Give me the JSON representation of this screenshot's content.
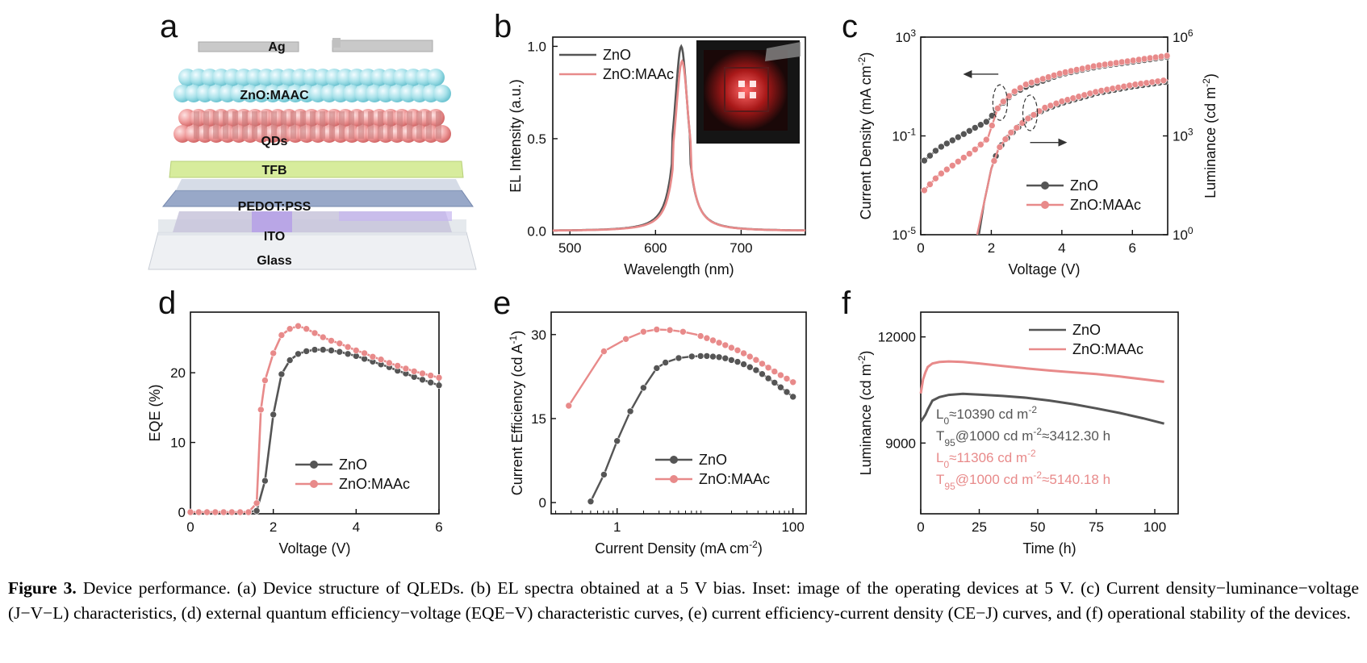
{
  "colors": {
    "zno": "#555555",
    "maac": "#e88a8a",
    "axis": "#111111"
  },
  "panel_a": {
    "label": "a",
    "layers": [
      "Ag",
      "ZnO:MAAC",
      "QDs",
      "TFB",
      "PEDOT:PSS",
      "ITO",
      "Glass"
    ]
  },
  "inset_b": {
    "description_icon": "device-photo-inset"
  },
  "caption": {
    "label": "Figure 3.",
    "text": "Device performance. (a) Device structure of QLEDs. (b) EL spectra obtained at a 5 V bias. Inset: image of the operating devices at 5 V. (c) Current density−luminance−voltage (J−V−L) characteristics, (d) external quantum efficiency−voltage (EQE−V) characteristic curves, (e) current efficiency-current density (CE−J) curves, and (f) operational stability of the devices."
  },
  "chart_data": [
    {
      "id": "b",
      "label": "b",
      "type": "line",
      "xlabel": "Wavelength (nm)",
      "ylabel": "EL Intensity (a.u.)",
      "xlim": [
        480,
        775
      ],
      "ylim": [
        -0.02,
        1.05
      ],
      "xticks": [
        500,
        600,
        700
      ],
      "yticks": [
        0.0,
        0.5,
        1.0
      ],
      "ytick_labels": [
        "0.0",
        "0.5",
        "1.0"
      ],
      "legend_position": "top-left",
      "series": [
        {
          "name": "ZnO",
          "color_key": "zno",
          "peak_x": 630,
          "peak_y": 1.0,
          "fwhm": 21
        },
        {
          "name": "ZnO:MAAc",
          "color_key": "maac",
          "peak_x": 631,
          "peak_y": 0.92,
          "fwhm": 21
        }
      ]
    },
    {
      "id": "c",
      "label": "c",
      "type": "line",
      "xlabel": "Voltage (V)",
      "ylabel": "Current Density (mA cm⁻²)",
      "y2label": "Luminance (cd m⁻²)",
      "xlim": [
        0,
        7
      ],
      "xticks": [
        0,
        2,
        4,
        6
      ],
      "ylim_log": [
        -5,
        3
      ],
      "y_tick_exps": [
        -5,
        -1,
        3
      ],
      "y2lim_log": [
        0,
        6
      ],
      "y2_tick_exps": [
        0,
        3,
        6
      ],
      "legend_position": "center-right",
      "series": [
        {
          "name": "ZnO",
          "color_key": "zno",
          "axis": "left",
          "x": [
            0.1,
            0.5,
            1.0,
            1.5,
            1.9,
            2.2,
            2.6,
            3.0,
            4.0,
            5.0,
            6.0,
            7.0
          ],
          "log_y": [
            -2.0,
            -1.5,
            -1.1,
            -0.7,
            -0.4,
            0.15,
            0.7,
            1.0,
            1.5,
            1.8,
            2.0,
            2.2
          ]
        },
        {
          "name": "ZnO:MAAc",
          "color_key": "maac",
          "axis": "left",
          "x": [
            0.1,
            0.5,
            1.0,
            1.5,
            1.9,
            2.2,
            2.6,
            3.0,
            4.0,
            5.0,
            6.0,
            7.0
          ],
          "log_y": [
            -3.2,
            -2.6,
            -2.1,
            -1.6,
            -1.1,
            0.2,
            0.75,
            1.1,
            1.55,
            1.85,
            2.05,
            2.25
          ]
        },
        {
          "name": "ZnO",
          "color_key": "zno",
          "axis": "right",
          "x": [
            1.65,
            1.8,
            2.0,
            2.2,
            2.5,
            3.0,
            3.5,
            4.0,
            5.0,
            6.0,
            7.0
          ],
          "log_y": [
            0.0,
            1.0,
            2.0,
            2.6,
            3.0,
            3.5,
            3.8,
            4.0,
            4.3,
            4.5,
            4.65
          ]
        },
        {
          "name": "ZnO:MAAc",
          "color_key": "maac",
          "axis": "right",
          "x": [
            1.6,
            1.8,
            2.0,
            2.2,
            2.5,
            3.0,
            3.5,
            4.0,
            5.0,
            6.0,
            7.0
          ],
          "log_y": [
            0.0,
            1.0,
            2.0,
            2.6,
            3.05,
            3.5,
            3.85,
            4.05,
            4.35,
            4.55,
            4.7
          ]
        }
      ]
    },
    {
      "id": "d",
      "label": "d",
      "type": "line",
      "xlabel": "Voltage (V)",
      "ylabel": "EQE (%)",
      "xlim": [
        0,
        6
      ],
      "ylim": [
        0,
        28
      ],
      "xticks": [
        0,
        2,
        4,
        6
      ],
      "yticks": [
        0,
        10,
        20
      ],
      "legend_position": "bottom-center",
      "series": [
        {
          "name": "ZnO",
          "color_key": "zno",
          "x": [
            0,
            0.2,
            0.4,
            0.6,
            0.8,
            1.0,
            1.2,
            1.4,
            1.6,
            1.8,
            2.0,
            2.2,
            2.4,
            2.6,
            2.8,
            3.0,
            3.2,
            3.4,
            3.6,
            3.8,
            4.0,
            4.2,
            4.4,
            4.6,
            4.8,
            5.0,
            5.2,
            5.4,
            5.6,
            5.8,
            6.0
          ],
          "y": [
            0,
            0,
            0,
            0,
            0,
            0,
            0,
            0,
            0.2,
            4.5,
            14.0,
            19.8,
            21.8,
            22.7,
            23.1,
            23.3,
            23.3,
            23.2,
            23.0,
            22.7,
            22.4,
            22.0,
            21.6,
            21.2,
            20.8,
            20.3,
            19.9,
            19.4,
            19.0,
            18.6,
            18.2
          ]
        },
        {
          "name": "ZnO:MAAc",
          "color_key": "maac",
          "x": [
            0,
            0.2,
            0.4,
            0.6,
            0.8,
            1.0,
            1.2,
            1.4,
            1.6,
            1.7,
            1.8,
            2.0,
            2.2,
            2.4,
            2.6,
            2.8,
            3.0,
            3.2,
            3.4,
            3.6,
            3.8,
            4.0,
            4.2,
            4.4,
            4.6,
            4.8,
            5.0,
            5.2,
            5.4,
            5.6,
            5.8,
            6.0
          ],
          "y": [
            0,
            0,
            0,
            0,
            0,
            0,
            0,
            0,
            1.3,
            14.7,
            18.9,
            22.8,
            25.4,
            26.3,
            26.7,
            26.3,
            25.7,
            25.1,
            24.6,
            24.2,
            23.7,
            23.2,
            22.8,
            22.3,
            21.9,
            21.4,
            21.0,
            20.6,
            20.2,
            19.9,
            19.6,
            19.3
          ]
        }
      ]
    },
    {
      "id": "e",
      "label": "e",
      "type": "line",
      "xlabel": "Current Density (mA cm⁻²)",
      "ylabel": "Current Efficiency (cd A⁻¹)",
      "xlim_log": [
        -0.75,
        2.15
      ],
      "x_tick_exps": [
        0,
        2
      ],
      "x_tick_labels": [
        "1",
        "100"
      ],
      "ylim": [
        -2,
        34
      ],
      "yticks": [
        0,
        15,
        30
      ],
      "legend_position": "bottom-right",
      "series": [
        {
          "name": "ZnO",
          "color_key": "zno",
          "log_x": [
            -0.3,
            -0.15,
            0.0,
            0.15,
            0.3,
            0.45,
            0.55,
            0.7,
            0.85,
            1.0,
            1.2,
            1.4,
            1.6,
            1.8,
            2.0
          ],
          "y": [
            0.2,
            5.0,
            11.0,
            16.3,
            20.5,
            24.0,
            25.0,
            25.8,
            26.1,
            26.2,
            25.9,
            25.0,
            23.5,
            21.3,
            18.9
          ]
        },
        {
          "name": "ZnO:MAAc",
          "color_key": "maac",
          "log_x": [
            -0.55,
            -0.15,
            0.1,
            0.3,
            0.45,
            0.6,
            0.75,
            0.9,
            1.05,
            1.2,
            1.4,
            1.6,
            1.8,
            2.0
          ],
          "y": [
            17.3,
            27.0,
            29.2,
            30.5,
            30.9,
            30.8,
            30.5,
            30.0,
            29.2,
            28.3,
            27.0,
            25.3,
            23.3,
            21.5
          ]
        }
      ]
    },
    {
      "id": "f",
      "label": "f",
      "type": "line",
      "xlabel": "Time (h)",
      "ylabel": "Luminance (cd m⁻²)",
      "xlim": [
        0,
        110
      ],
      "ylim": [
        7000,
        12700
      ],
      "xticks": [
        0,
        25,
        50,
        75,
        100
      ],
      "yticks": [
        9000,
        12000
      ],
      "legend_position": "top-center",
      "series": [
        {
          "name": "ZnO",
          "color_key": "zno",
          "x": [
            0,
            1,
            2,
            3,
            5,
            8,
            12,
            18,
            25,
            35,
            45,
            55,
            65,
            75,
            85,
            95,
            104
          ],
          "y": [
            9600,
            9700,
            9800,
            9950,
            10200,
            10300,
            10360,
            10390,
            10370,
            10330,
            10280,
            10200,
            10100,
            9980,
            9850,
            9700,
            9550
          ]
        },
        {
          "name": "ZnO:MAAc",
          "color_key": "maac",
          "x": [
            0,
            1,
            2,
            3,
            5,
            8,
            12,
            18,
            25,
            35,
            45,
            55,
            65,
            75,
            85,
            95,
            104
          ],
          "y": [
            10400,
            10800,
            11000,
            11150,
            11250,
            11290,
            11306,
            11290,
            11250,
            11180,
            11110,
            11050,
            11000,
            10950,
            10880,
            10800,
            10730
          ]
        }
      ],
      "annotations": [
        {
          "color_key": "zno",
          "main": "L",
          "sub": "0",
          "rest": "≈10390 cd m",
          "sup": "-2",
          "tail": ""
        },
        {
          "color_key": "zno",
          "main": "T",
          "sub": "95",
          "rest": "@1000 cd m",
          "sup": "-2",
          "tail": "≈3412.30 h"
        },
        {
          "color_key": "maac",
          "main": "L",
          "sub": "0",
          "rest": "≈11306 cd m",
          "sup": "-2",
          "tail": ""
        },
        {
          "color_key": "maac",
          "main": "T",
          "sub": "95",
          "rest": "@1000 cd m",
          "sup": "-2",
          "tail": "≈5140.18 h"
        }
      ]
    }
  ]
}
